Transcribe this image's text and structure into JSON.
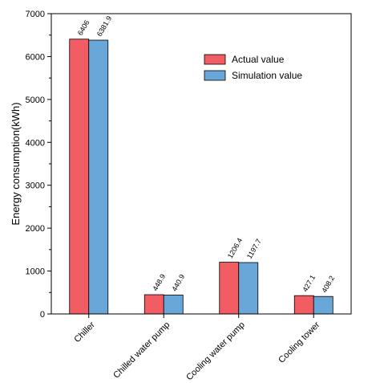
{
  "chart_data": {
    "type": "bar",
    "categories": [
      "Chiller",
      "Chilled water pump",
      "Cooling water pump",
      "Cooling tower"
    ],
    "series": [
      {
        "name": "Actual value",
        "values": [
          6406,
          448.9,
          1206.4,
          427.1
        ],
        "labels": [
          "6406",
          "448.9",
          "1206.4",
          "427.1"
        ],
        "color": "#f15d62"
      },
      {
        "name": "Simulation value",
        "values": [
          6381.9,
          440.9,
          1197.7,
          408.2
        ],
        "labels": [
          "6381.9",
          "440.9",
          "1197.7",
          "408.2"
        ],
        "color": "#6aa7d9"
      }
    ],
    "ylabel": "Energy consumption(kWh)",
    "xlabel": "",
    "ylim": [
      0,
      7000
    ],
    "yticks": [
      0,
      1000,
      2000,
      3000,
      4000,
      5000,
      6000,
      7000
    ],
    "legend_position": "top-right",
    "grid": false
  }
}
